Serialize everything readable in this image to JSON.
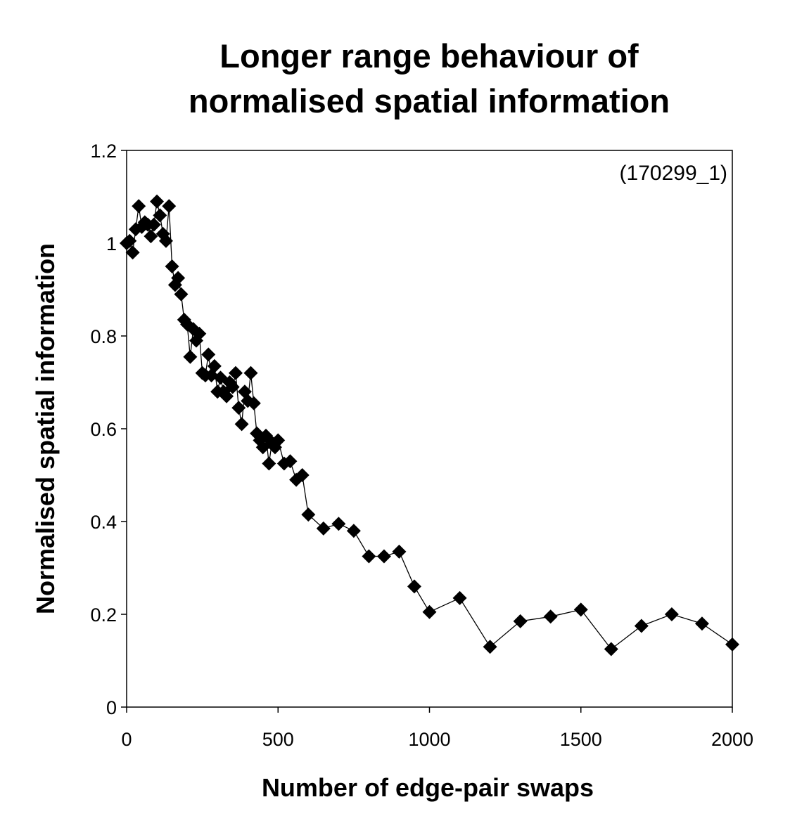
{
  "chart_data": {
    "type": "line",
    "title_lines": [
      "Longer range behaviour of",
      "normalised spatial information"
    ],
    "xlabel": "Number of edge-pair swaps",
    "ylabel": "Normalised spatial information",
    "annotation": "(170299_1)",
    "xlim": [
      0,
      2000
    ],
    "ylim": [
      0,
      1.2
    ],
    "xticks": [
      0,
      500,
      1000,
      1500,
      2000
    ],
    "yticks": [
      0,
      0.2,
      0.4,
      0.6,
      0.8,
      1,
      1.2
    ],
    "xtick_labels": [
      "0",
      "500",
      "1000",
      "1500",
      "2000"
    ],
    "ytick_labels": [
      "0",
      "0.2",
      "0.4",
      "0.6",
      "0.8",
      "1",
      "1.2"
    ],
    "marker": "diamond",
    "color": "#000000",
    "series": [
      {
        "name": "170299_1",
        "x": [
          0,
          10,
          20,
          30,
          40,
          50,
          60,
          70,
          80,
          90,
          100,
          110,
          120,
          130,
          140,
          150,
          160,
          170,
          180,
          190,
          200,
          210,
          220,
          230,
          240,
          250,
          260,
          270,
          280,
          290,
          300,
          310,
          320,
          330,
          340,
          350,
          360,
          370,
          380,
          390,
          400,
          410,
          420,
          430,
          440,
          450,
          460,
          470,
          480,
          490,
          500,
          520,
          540,
          560,
          580,
          600,
          650,
          700,
          750,
          800,
          850,
          900,
          950,
          1000,
          1100,
          1200,
          1300,
          1400,
          1500,
          1600,
          1700,
          1800,
          1900,
          2000
        ],
        "y": [
          1.0,
          1.005,
          0.98,
          1.03,
          1.08,
          1.035,
          1.045,
          1.04,
          1.015,
          1.04,
          1.09,
          1.06,
          1.02,
          1.005,
          1.08,
          0.95,
          0.91,
          0.925,
          0.89,
          0.835,
          0.825,
          0.755,
          0.815,
          0.79,
          0.805,
          0.72,
          0.715,
          0.76,
          0.715,
          0.735,
          0.68,
          0.71,
          0.68,
          0.67,
          0.7,
          0.69,
          0.72,
          0.645,
          0.61,
          0.68,
          0.66,
          0.72,
          0.655,
          0.59,
          0.575,
          0.56,
          0.585,
          0.525,
          0.57,
          0.56,
          0.575,
          0.525,
          0.53,
          0.49,
          0.5,
          0.415,
          0.385,
          0.395,
          0.38,
          0.325,
          0.325,
          0.335,
          0.26,
          0.205,
          0.235,
          0.13,
          0.185,
          0.195,
          0.21,
          0.125,
          0.175,
          0.2,
          0.18,
          0.135
        ]
      }
    ]
  }
}
